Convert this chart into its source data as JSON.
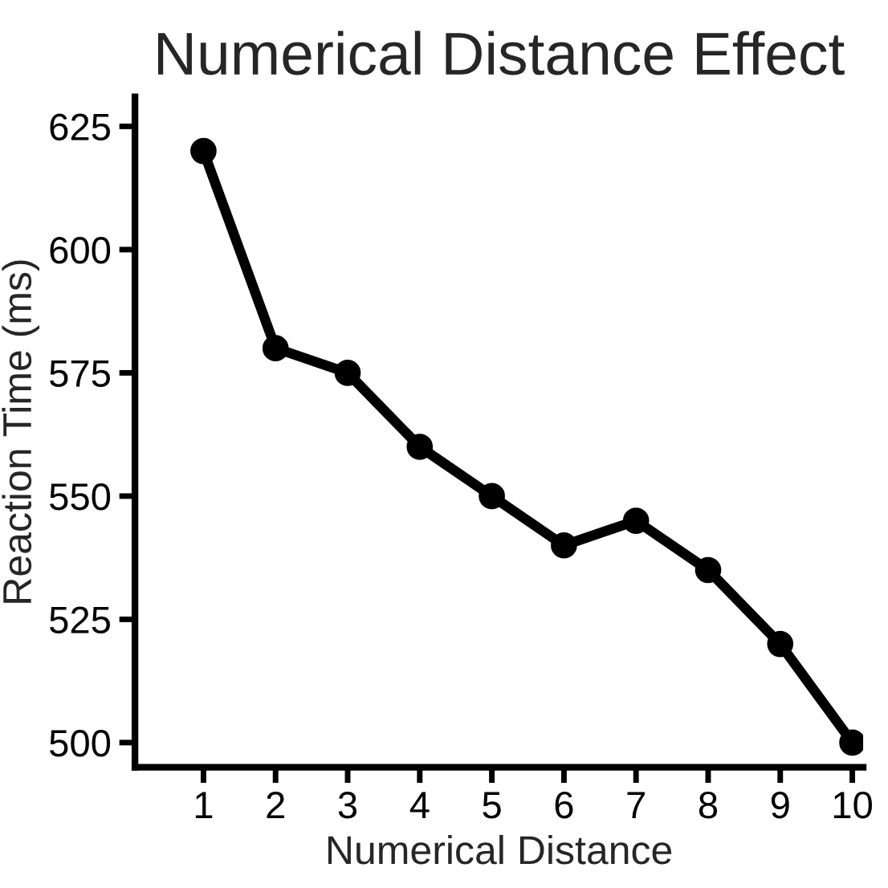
{
  "chart_data": {
    "type": "line",
    "title": "Numerical Distance Effect",
    "xlabel": "Numerical Distance",
    "ylabel": "Reaction Time (ms)",
    "x": [
      1,
      2,
      3,
      4,
      5,
      6,
      7,
      8,
      9,
      10
    ],
    "series": [
      {
        "color": "#000000",
        "values": [
          620,
          580,
          575,
          560,
          550,
          540,
          545,
          535,
          520,
          500
        ]
      }
    ],
    "xlim": [
      0.05,
      10.15
    ],
    "xticks": [
      1,
      2,
      3,
      4,
      5,
      6,
      7,
      8,
      9,
      10
    ],
    "ylim": [
      495,
      631
    ],
    "yticks": [
      500,
      525,
      550,
      575,
      600,
      625
    ],
    "grid": false,
    "legend": false,
    "marker": "circle",
    "line_style": "solid"
  }
}
